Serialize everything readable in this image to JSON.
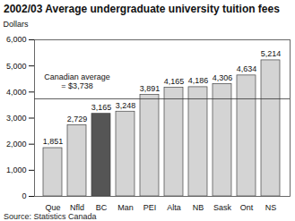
{
  "chart_data": {
    "type": "bar",
    "title": "2002/03 Average undergraduate university tuition fees",
    "y_label": "Dollars",
    "categories": [
      "Que",
      "Nfld",
      "BC",
      "Man",
      "PEI",
      "Alta",
      "NB",
      "Sask",
      "Ont",
      "NS"
    ],
    "values": [
      1851,
      2729,
      3165,
      3248,
      3891,
      4165,
      4186,
      4306,
      4634,
      5214
    ],
    "value_labels": [
      "1,851",
      "2,729",
      "3,165",
      "3,248",
      "3,891",
      "4,165",
      "4,186",
      "4,306",
      "4,634",
      "5,214"
    ],
    "colors": [
      "#d4d4d4",
      "#d4d4d4",
      "#555555",
      "#d4d4d4",
      "#d4d4d4",
      "#d4d4d4",
      "#d4d4d4",
      "#d4d4d4",
      "#d4d4d4",
      "#d4d4d4"
    ],
    "data_labels": true,
    "ylim": [
      0,
      6000
    ],
    "yticks": [
      0,
      {
        "value": 1000,
        "label": "1,000"
      },
      {
        "value": 2000,
        "label": "2,000"
      },
      {
        "value": 3000,
        "label": "3,000"
      },
      {
        "value": 4000,
        "label": "4,000"
      },
      {
        "value": 5000,
        "label": "5,000"
      },
      {
        "value": 6000,
        "label": "6,000"
      }
    ],
    "annotations": [
      {
        "text": "Canadian average\n= $3,738",
        "value": 3738,
        "category": "Nfld"
      }
    ],
    "source": "Source: Statistics Canada",
    "grid": false
  }
}
